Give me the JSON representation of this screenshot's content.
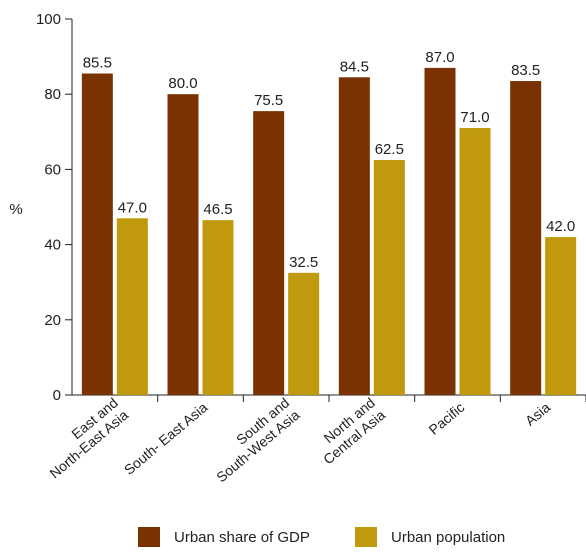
{
  "chart_data": {
    "type": "bar",
    "categories": [
      [
        "East and",
        "North-East Asia"
      ],
      [
        "South- East Asia"
      ],
      [
        "South and",
        "South-West Asia"
      ],
      [
        "North and",
        "Central Asia"
      ],
      [
        "Pacific"
      ],
      [
        "Asia"
      ]
    ],
    "series": [
      {
        "name": "Urban share of GDP",
        "color": "#7a3300",
        "values": [
          85.5,
          80.0,
          75.5,
          84.5,
          87.0,
          83.5
        ]
      },
      {
        "name": "Urban population",
        "color": "#c09a0c",
        "values": [
          47.0,
          46.5,
          32.5,
          62.5,
          71.0,
          42.0
        ]
      }
    ],
    "ylabel": "%",
    "ylim": [
      0,
      100
    ],
    "yticks": [
      0,
      20,
      40,
      60,
      80,
      100
    ],
    "legend_position": "bottom",
    "grid": false
  }
}
